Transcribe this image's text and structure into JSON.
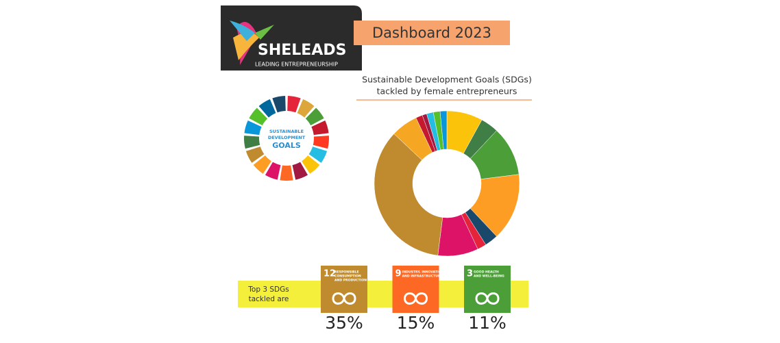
{
  "header": {
    "brand": "SHELEADS",
    "tagline": "LEADING ENTREPRENEURSHIP",
    "badge": "Dashboard 2023"
  },
  "sdg_logo": {
    "line1": "SUSTAINABLE",
    "line2": "DEVELOPMENT",
    "line3": "GOALS"
  },
  "chart_data": {
    "type": "donut",
    "title_lines": [
      "Sustainable Development Goals (SDGs)",
      "tackled by female entrepreneurs"
    ],
    "values": [
      8,
      4,
      11,
      15,
      3,
      2,
      9,
      35,
      6,
      1.5,
      1,
      1.5,
      1.5,
      1.5
    ],
    "colors": [
      "#fcc30b",
      "#3f7e44",
      "#4c9f38",
      "#fd9d24",
      "#19486a",
      "#e5243b",
      "#dd1367",
      "#bf8b2e",
      "#f5a623",
      "#c5192d",
      "#a21942",
      "#26bde2",
      "#56c02b",
      "#0a97d9"
    ]
  },
  "top": {
    "label_lines": [
      "Top 3 SDGs",
      "tackled are"
    ],
    "items": [
      {
        "number": "12",
        "name_lines": [
          "RESPONSIBLE",
          "CONSUMPTION",
          "AND PRODUCTION"
        ],
        "share": "35%",
        "color": "#bf8b2e"
      },
      {
        "number": "9",
        "name_lines": [
          "INDUSTRY, INNOVATION",
          "AND INFRASTRUCTURE"
        ],
        "share": "15%",
        "color": "#fd6925"
      },
      {
        "number": "3",
        "name_lines": [
          "GOOD HEALTH",
          "AND WELL-BEING"
        ],
        "share": "11%",
        "color": "#4c9f38"
      }
    ]
  }
}
